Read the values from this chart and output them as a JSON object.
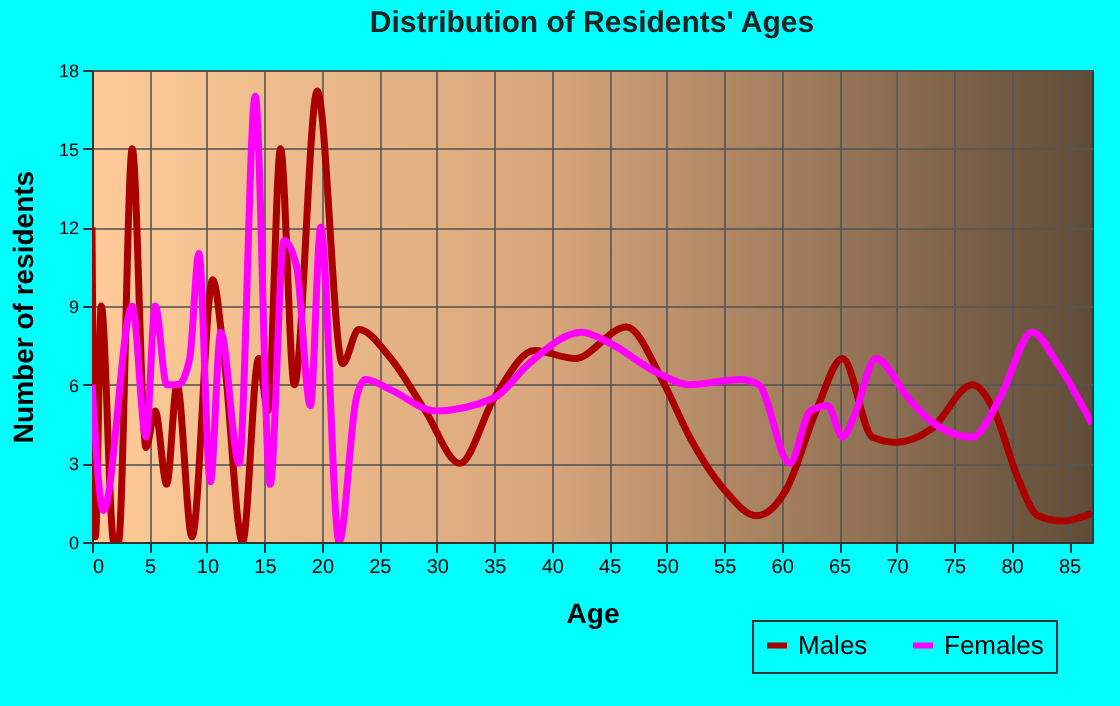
{
  "chart_data": {
    "type": "line",
    "title": "Distribution of Residents' Ages",
    "xlabel": "Age",
    "ylabel": "Number of residents",
    "xlim": [
      0,
      87
    ],
    "xticks": [
      0,
      5,
      10,
      15,
      20,
      25,
      30,
      35,
      40,
      45,
      50,
      55,
      60,
      65,
      70,
      75,
      80,
      85
    ],
    "ylim": [
      0,
      18
    ],
    "yticks": [
      0,
      3,
      6,
      9,
      12,
      15,
      18
    ],
    "grid": true,
    "legend": "bottom right",
    "marker": "none",
    "line_style": "solid",
    "series": [
      {
        "name": "Males",
        "color": "#aa0000",
        "x": [
          0,
          0.3,
          0.8,
          1.9,
          2.3,
          3.5,
          4.7,
          5.5,
          6.5,
          7.4,
          8.7,
          10.5,
          11.5,
          13.1,
          14.5,
          15.3,
          16.4,
          17.6,
          19.6,
          21.8,
          23.2,
          26,
          29,
          32,
          35,
          38.5,
          42,
          46.5,
          49.8,
          52,
          55,
          57.8,
          60.4,
          63,
          65.3,
          67.9,
          70,
          73,
          76.6,
          78.5,
          80.5,
          82.3,
          84.5,
          87
        ],
        "values": [
          12,
          0.2,
          9,
          0,
          0,
          15,
          3.6,
          5,
          2.2,
          6,
          0.2,
          10,
          7,
          0,
          7,
          5,
          15,
          6,
          17.2,
          6.8,
          8.1,
          7,
          5,
          3,
          5.5,
          7.3,
          7,
          8.2,
          6,
          4,
          2,
          1,
          2,
          5,
          7,
          4,
          3.8,
          4.3,
          6,
          5,
          2.5,
          1,
          0.8,
          1.1
        ]
      },
      {
        "name": "Females",
        "color": "#ff00ff",
        "x": [
          0,
          1,
          3.5,
          4.7,
          5.5,
          6.5,
          7.5,
          8.5,
          9.3,
          10.3,
          11.2,
          12.8,
          14.2,
          15.5,
          16.7,
          17.8,
          19,
          19.9,
          21.5,
          23,
          23.8,
          26,
          29.9,
          35,
          38,
          42.6,
          45,
          49,
          52,
          56.4,
          58,
          60.7,
          62.5,
          64,
          65.3,
          66.3,
          68.2,
          71,
          73,
          76.6,
          79,
          81.8,
          84,
          87
        ],
        "values": [
          6,
          1.2,
          9,
          4,
          9,
          6,
          6,
          7,
          11,
          2.3,
          8,
          3,
          17,
          2.2,
          11.5,
          10.5,
          5.2,
          12,
          0,
          5.5,
          6.2,
          5.8,
          5,
          5.5,
          6.8,
          8,
          7.6,
          6.5,
          6,
          6.2,
          6,
          3,
          5,
          5.2,
          4,
          4.8,
          7,
          5.5,
          4.6,
          4,
          5.5,
          8,
          6.8,
          4.5
        ]
      }
    ]
  }
}
